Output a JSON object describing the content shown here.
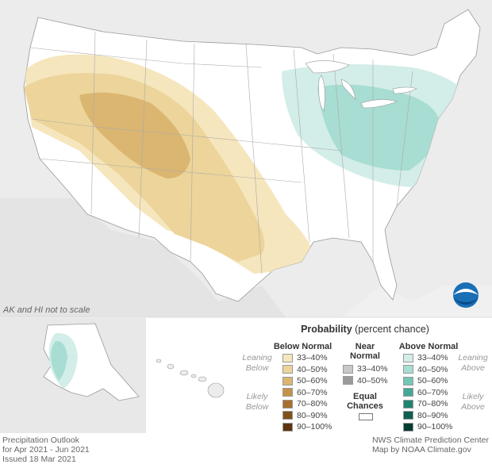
{
  "product": {
    "title": "Precipitation Outlook",
    "period": "for Apr 2021 - Jun 2021",
    "issued": "Issued 18 Mar 2021"
  },
  "credits": {
    "line1": "NWS Climate Prediction Center",
    "line2": "Map by NOAA Climate.gov"
  },
  "logo": {
    "text": "NOAA"
  },
  "inset_note": "AK and HI not to scale",
  "legend": {
    "title_bold": "Probability",
    "title_rest": " (percent chance)",
    "below_header": "Below Normal",
    "near_header_line1": "Near",
    "near_header_line2": "Normal",
    "above_header": "Above Normal",
    "leaning_below_1": "Leaning",
    "leaning_below_2": "Below",
    "likely_below_1": "Likely",
    "likely_below_2": "Below",
    "leaning_above_1": "Leaning",
    "leaning_above_2": "Above",
    "likely_above_1": "Likely",
    "likely_above_2": "Above",
    "equal_chances_1": "Equal",
    "equal_chances_2": "Chances",
    "below_items": [
      {
        "label": "33–40%",
        "color": "#f6e6bd"
      },
      {
        "label": "40–50%",
        "color": "#ecd49a"
      },
      {
        "label": "50–60%",
        "color": "#dbb671"
      },
      {
        "label": "60–70%",
        "color": "#c69249"
      },
      {
        "label": "70–80%",
        "color": "#a8702d"
      },
      {
        "label": "80–90%",
        "color": "#80511a"
      },
      {
        "label": "90–100%",
        "color": "#5c3510"
      }
    ],
    "near_items": [
      {
        "label": "33–40%",
        "color": "#c8c8c8"
      },
      {
        "label": "40–50%",
        "color": "#9a9a9a"
      }
    ],
    "above_items": [
      {
        "label": "33–40%",
        "color": "#d3ede8"
      },
      {
        "label": "40–50%",
        "color": "#a7ddd2"
      },
      {
        "label": "50–60%",
        "color": "#74c6b6"
      },
      {
        "label": "60–70%",
        "color": "#44a894"
      },
      {
        "label": "70–80%",
        "color": "#21836f"
      },
      {
        "label": "80–90%",
        "color": "#0d5f4f"
      },
      {
        "label": "90–100%",
        "color": "#063b31"
      }
    ]
  }
}
